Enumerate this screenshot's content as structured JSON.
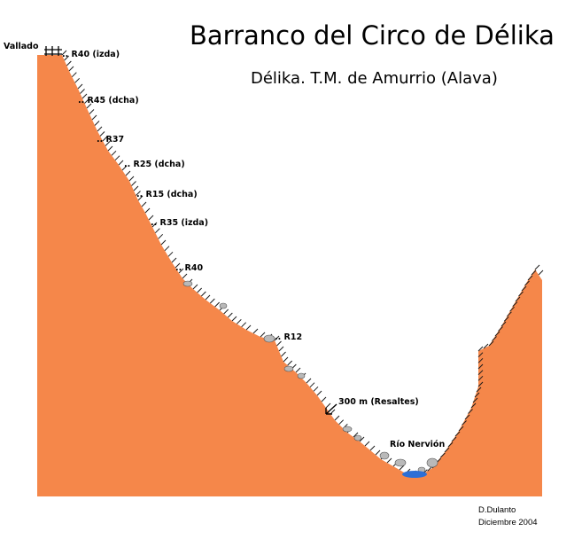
{
  "title": "Barranco del Circo de Délika",
  "subtitle": "Délika. T.M. de Amurrio (Alava)",
  "top_label": "Vallado",
  "rappels": [
    {
      "id": "r40a",
      "label": "R40 (izda)"
    },
    {
      "id": "r45",
      "label": "R45 (dcha)"
    },
    {
      "id": "r37",
      "label": "R37"
    },
    {
      "id": "r25",
      "label": "R25 (dcha)"
    },
    {
      "id": "r15",
      "label": "R15 (dcha)"
    },
    {
      "id": "r35",
      "label": "R35 (izda)"
    },
    {
      "id": "r40b",
      "label": "R40"
    },
    {
      "id": "r12",
      "label": "R12"
    }
  ],
  "resaltes_label": "300 m (Resaltes)",
  "river_label": "Río Nervión",
  "author": "D.Dulanto",
  "date": "Diciembre 2004",
  "colors": {
    "terrain": "#f5874a",
    "hatch": "#1a1a1a",
    "river": "#2d6fd6",
    "rock": "#b9b9b9"
  }
}
